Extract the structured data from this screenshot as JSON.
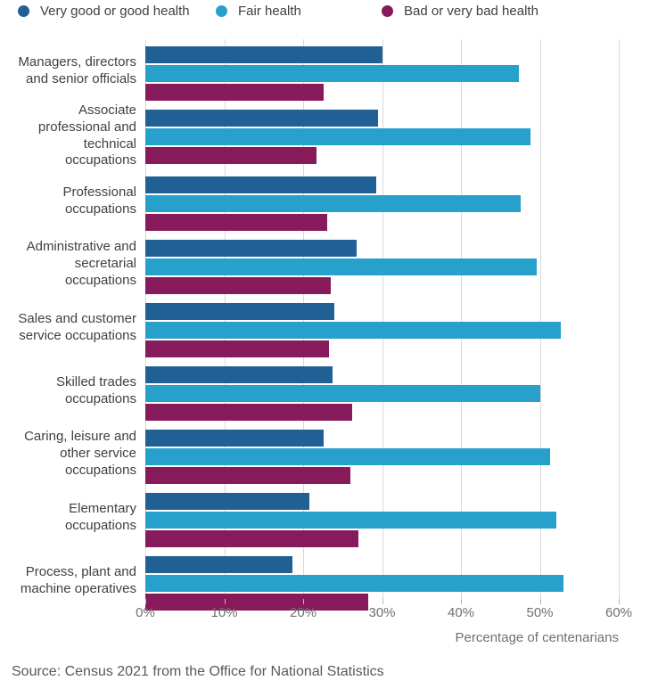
{
  "legend": [
    {
      "label": "Very good or good health",
      "color": "#206095"
    },
    {
      "label": "Fair health",
      "color": "#27A0CC"
    },
    {
      "label": "Bad or very bad health",
      "color": "#871A5B"
    }
  ],
  "chart_data": {
    "type": "bar",
    "orientation": "horizontal",
    "title": "",
    "xlabel": "Percentage of centenarians",
    "ylabel": "",
    "xlim": [
      0,
      60
    ],
    "x_ticks": [
      "0%",
      "10%",
      "20%",
      "30%",
      "40%",
      "50%",
      "60%"
    ],
    "grid": "vertical",
    "legend_position": "top",
    "categories": [
      "Managers, directors and senior officials",
      "Associate professional and technical occupations",
      "Professional occupations",
      "Administrative and secretarial occupations",
      "Sales and customer service occupations",
      "Skilled trades occupations",
      "Caring, leisure and other service occupations",
      "Elementary occupations",
      "Process, plant and machine operatives"
    ],
    "series": [
      {
        "name": "Very good or good health",
        "color": "#206095",
        "values": [
          30.1,
          29.5,
          29.3,
          26.8,
          23.9,
          23.7,
          22.6,
          20.8,
          18.6
        ]
      },
      {
        "name": "Fair health",
        "color": "#27A0CC",
        "values": [
          47.4,
          48.8,
          47.6,
          49.6,
          52.7,
          50.0,
          51.3,
          52.1,
          53.0
        ]
      },
      {
        "name": "Bad or very bad health",
        "color": "#871A5B",
        "values": [
          22.6,
          21.7,
          23.0,
          23.5,
          23.3,
          26.2,
          26.0,
          27.0,
          28.3
        ]
      }
    ]
  },
  "axis": {
    "xlabel": "Percentage of centenarians"
  },
  "source": "Source: Census 2021 from the Office for National Statistics",
  "legend_layout": {
    "lefts": [
      20,
      242,
      428
    ]
  }
}
